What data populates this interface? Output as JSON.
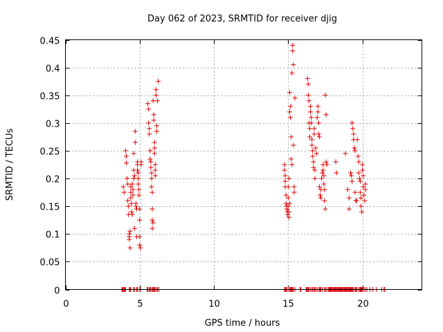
{
  "chart_data": {
    "type": "scatter",
    "title": "Day 062 of 2023, SRMTID for receiver djig",
    "xlabel": "GPS time / hours",
    "ylabel": "SRMTID / TECUs",
    "xlim": [
      0,
      24
    ],
    "ylim": [
      0,
      0.45
    ],
    "x_ticks": [
      0,
      5,
      10,
      15,
      20
    ],
    "y_ticks": [
      0,
      0.05,
      0.1,
      0.15,
      0.2,
      0.25,
      0.3,
      0.35,
      0.4,
      0.45
    ],
    "x_tick_labels": [
      "0",
      "5",
      "10",
      "15",
      "20"
    ],
    "y_tick_labels": [
      "0",
      "0.05",
      "0.1",
      "0.15",
      "0.2",
      "0.25",
      "0.3",
      "0.35",
      "0.4",
      "0.45"
    ],
    "grid": true,
    "marker": "+",
    "color": "#e00000",
    "series": [
      {
        "points": [
          [
            3.9,
            0.185
          ],
          [
            3.95,
            0.175
          ],
          [
            4.05,
            0.25
          ],
          [
            4.1,
            0.24
          ],
          [
            4.1,
            0.228
          ],
          [
            4.15,
            0.2
          ],
          [
            4.2,
            0.19
          ],
          [
            4.2,
            0.16
          ],
          [
            4.25,
            0.135
          ],
          [
            4.25,
            0.15
          ],
          [
            4.3,
            0.1
          ],
          [
            4.3,
            0.095
          ],
          [
            4.3,
            0.09
          ],
          [
            4.35,
            0.105
          ],
          [
            4.35,
            0.075
          ],
          [
            4.4,
            0.185
          ],
          [
            4.4,
            0.175
          ],
          [
            4.4,
            0.165
          ],
          [
            4.45,
            0.155
          ],
          [
            4.45,
            0.14
          ],
          [
            4.5,
            0.135
          ],
          [
            4.5,
            0.19
          ],
          [
            4.55,
            0.18
          ],
          [
            4.55,
            0.17
          ],
          [
            4.6,
            0.215
          ],
          [
            4.6,
            0.2
          ],
          [
            4.6,
            0.245
          ],
          [
            4.65,
            0.205
          ],
          [
            4.65,
            0.11
          ],
          [
            4.7,
            0.285
          ],
          [
            4.7,
            0.265
          ],
          [
            4.75,
            0.15
          ],
          [
            4.75,
            0.155
          ],
          [
            4.8,
            0.145
          ],
          [
            4.8,
            0.095
          ],
          [
            4.85,
            0.23
          ],
          [
            4.85,
            0.225
          ],
          [
            4.85,
            0.215
          ],
          [
            4.9,
            0.21
          ],
          [
            4.9,
            0.2
          ],
          [
            4.9,
            0.19
          ],
          [
            4.95,
            0.18
          ],
          [
            4.95,
            0.17
          ],
          [
            5.0,
            0.145
          ],
          [
            5.0,
            0.125
          ],
          [
            5.0,
            0.095
          ],
          [
            5.0,
            0.08
          ],
          [
            5.05,
            0.075
          ],
          [
            5.1,
            0.23
          ],
          [
            5.1,
            0.225
          ],
          [
            5.55,
            0.335
          ],
          [
            5.6,
            0.325
          ],
          [
            5.6,
            0.3
          ],
          [
            5.65,
            0.29
          ],
          [
            5.65,
            0.28
          ],
          [
            5.7,
            0.25
          ],
          [
            5.7,
            0.235
          ],
          [
            5.75,
            0.23
          ],
          [
            5.75,
            0.22
          ],
          [
            5.8,
            0.21
          ],
          [
            5.8,
            0.2
          ],
          [
            5.8,
            0.185
          ],
          [
            5.85,
            0.175
          ],
          [
            5.85,
            0.145
          ],
          [
            5.85,
            0.125
          ],
          [
            5.85,
            0.11
          ],
          [
            5.9,
            0.12
          ],
          [
            5.9,
            0.34
          ],
          [
            5.95,
            0.315
          ],
          [
            5.95,
            0.305
          ],
          [
            6.0,
            0.265
          ],
          [
            6.0,
            0.255
          ],
          [
            6.0,
            0.245
          ],
          [
            6.05,
            0.225
          ],
          [
            6.05,
            0.215
          ],
          [
            6.05,
            0.205
          ],
          [
            6.1,
            0.36
          ],
          [
            6.1,
            0.35
          ],
          [
            6.15,
            0.295
          ],
          [
            6.15,
            0.285
          ],
          [
            6.2,
            0.34
          ],
          [
            6.25,
            0.375
          ],
          [
            14.75,
            0.225
          ],
          [
            14.75,
            0.215
          ],
          [
            14.8,
            0.205
          ],
          [
            14.8,
            0.195
          ],
          [
            14.8,
            0.185
          ],
          [
            14.85,
            0.17
          ],
          [
            14.85,
            0.155
          ],
          [
            14.9,
            0.15
          ],
          [
            14.9,
            0.145
          ],
          [
            14.95,
            0.14
          ],
          [
            14.95,
            0.135
          ],
          [
            15.0,
            0.15
          ],
          [
            15.0,
            0.165
          ],
          [
            15.0,
            0.185
          ],
          [
            15.05,
            0.2
          ],
          [
            15.05,
            0.14
          ],
          [
            15.05,
            0.13
          ],
          [
            15.1,
            0.155
          ],
          [
            15.1,
            0.32
          ],
          [
            15.1,
            0.355
          ],
          [
            15.15,
            0.33
          ],
          [
            15.15,
            0.31
          ],
          [
            15.2,
            0.275
          ],
          [
            15.2,
            0.235
          ],
          [
            15.25,
            0.225
          ],
          [
            15.25,
            0.39
          ],
          [
            15.3,
            0.44
          ],
          [
            15.3,
            0.43
          ],
          [
            15.35,
            0.405
          ],
          [
            15.35,
            0.26
          ],
          [
            15.4,
            0.185
          ],
          [
            15.4,
            0.175
          ],
          [
            15.45,
            0.345
          ],
          [
            16.3,
            0.38
          ],
          [
            16.35,
            0.37
          ],
          [
            16.35,
            0.35
          ],
          [
            16.4,
            0.34
          ],
          [
            16.4,
            0.3
          ],
          [
            16.45,
            0.29
          ],
          [
            16.45,
            0.275
          ],
          [
            16.5,
            0.33
          ],
          [
            16.5,
            0.32
          ],
          [
            16.55,
            0.31
          ],
          [
            16.55,
            0.3
          ],
          [
            16.6,
            0.27
          ],
          [
            16.6,
            0.26
          ],
          [
            16.65,
            0.25
          ],
          [
            16.65,
            0.24
          ],
          [
            16.7,
            0.23
          ],
          [
            16.7,
            0.22
          ],
          [
            16.75,
            0.29
          ],
          [
            16.75,
            0.28
          ],
          [
            16.8,
            0.215
          ],
          [
            16.8,
            0.2
          ],
          [
            16.85,
            0.255
          ],
          [
            16.9,
            0.245
          ],
          [
            16.95,
            0.31
          ],
          [
            17.0,
            0.33
          ],
          [
            17.0,
            0.32
          ],
          [
            17.05,
            0.3
          ],
          [
            17.05,
            0.28
          ],
          [
            17.1,
            0.275
          ],
          [
            17.1,
            0.185
          ],
          [
            17.15,
            0.17
          ],
          [
            17.2,
            0.18
          ],
          [
            17.2,
            0.165
          ],
          [
            17.25,
            0.2
          ],
          [
            17.3,
            0.21
          ],
          [
            17.35,
            0.225
          ],
          [
            17.35,
            0.215
          ],
          [
            17.4,
            0.205
          ],
          [
            17.4,
            0.19
          ],
          [
            17.45,
            0.18
          ],
          [
            17.45,
            0.16
          ],
          [
            17.5,
            0.145
          ],
          [
            17.5,
            0.35
          ],
          [
            17.55,
            0.23
          ],
          [
            17.55,
            0.315
          ],
          [
            17.6,
            0.225
          ],
          [
            18.2,
            0.23
          ],
          [
            18.25,
            0.21
          ],
          [
            18.85,
            0.245
          ],
          [
            19.0,
            0.18
          ],
          [
            19.1,
            0.165
          ],
          [
            19.1,
            0.145
          ],
          [
            19.2,
            0.21
          ],
          [
            19.25,
            0.205
          ],
          [
            19.3,
            0.195
          ],
          [
            19.3,
            0.3
          ],
          [
            19.35,
            0.29
          ],
          [
            19.4,
            0.28
          ],
          [
            19.4,
            0.27
          ],
          [
            19.45,
            0.255
          ],
          [
            19.5,
            0.25
          ],
          [
            19.5,
            0.175
          ],
          [
            19.55,
            0.16
          ],
          [
            19.6,
            0.16
          ],
          [
            19.65,
            0.27
          ],
          [
            19.7,
            0.24
          ],
          [
            19.75,
            0.23
          ],
          [
            19.75,
            0.21
          ],
          [
            19.8,
            0.2
          ],
          [
            19.85,
            0.195
          ],
          [
            19.85,
            0.175
          ],
          [
            19.9,
            0.165
          ],
          [
            19.9,
            0.15
          ],
          [
            19.95,
            0.14
          ],
          [
            20.0,
            0.225
          ],
          [
            20.0,
            0.215
          ],
          [
            20.05,
            0.205
          ],
          [
            20.05,
            0.185
          ],
          [
            20.1,
            0.17
          ],
          [
            20.15,
            0.16
          ],
          [
            20.2,
            0.19
          ],
          [
            20.2,
            0.18
          ]
        ]
      }
    ],
    "zero_points_x": [
      3.8,
      3.85,
      3.9,
      3.95,
      4.0,
      4.05,
      4.3,
      4.35,
      4.4,
      4.6,
      4.65,
      4.8,
      4.85,
      5.0,
      5.05,
      5.5,
      5.55,
      5.65,
      5.7,
      5.75,
      5.85,
      5.9,
      5.95,
      6.0,
      6.05,
      6.15,
      6.2,
      6.3,
      14.75,
      14.8,
      14.85,
      14.9,
      15.0,
      15.1,
      15.15,
      15.2,
      15.25,
      15.3,
      15.35,
      15.45,
      15.8,
      15.85,
      16.2,
      16.25,
      16.3,
      16.35,
      16.4,
      16.5,
      16.6,
      16.65,
      16.75,
      16.8,
      16.9,
      17.0,
      17.1,
      17.15,
      17.2,
      17.3,
      17.45,
      17.5,
      17.6,
      17.7,
      17.75,
      17.8,
      17.85,
      17.9,
      17.95,
      18.0,
      18.05,
      18.1,
      18.15,
      18.2,
      18.25,
      18.3,
      18.35,
      18.4,
      18.45,
      18.5,
      18.55,
      18.6,
      18.65,
      18.7,
      18.75,
      18.8,
      18.85,
      18.9,
      18.95,
      19.0,
      19.05,
      19.1,
      19.15,
      19.2,
      19.25,
      19.3,
      19.35,
      19.4,
      19.5,
      19.55,
      19.6,
      19.7,
      19.8,
      19.85,
      19.9,
      19.95,
      20.0,
      20.1,
      20.2,
      20.3,
      20.5,
      20.7,
      20.95,
      21.3,
      21.45,
      21.5
    ]
  }
}
